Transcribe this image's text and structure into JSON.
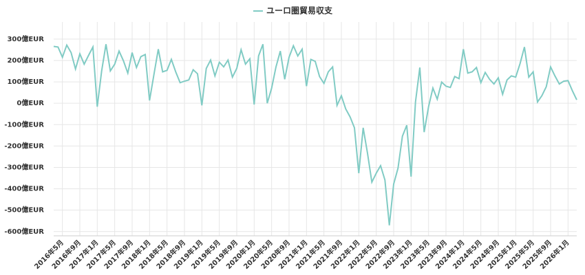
{
  "chart_data": {
    "type": "line",
    "categories": [
      null,
      null,
      "2016年5月",
      null,
      null,
      null,
      "2016年9月",
      null,
      null,
      null,
      "2017年1月",
      null,
      null,
      null,
      "2017年5月",
      null,
      null,
      null,
      "2017年9月",
      null,
      null,
      null,
      "2018年1月",
      null,
      null,
      null,
      "2018年5月",
      null,
      null,
      null,
      "2018年9月",
      null,
      null,
      null,
      "2019年1月",
      null,
      null,
      null,
      "2019年5月",
      null,
      null,
      null,
      "2019年9月",
      null,
      null,
      null,
      "2020年1月",
      null,
      null,
      null,
      "2020年5月",
      null,
      null,
      null,
      "2020年9月",
      null,
      null,
      null,
      "2021年1月",
      null,
      null,
      null,
      "2021年5月",
      null,
      null,
      null,
      "2021年9月",
      null,
      null,
      null,
      "2022年1月",
      null,
      null,
      null,
      "2022年5月",
      null,
      null,
      null,
      "2022年9月",
      null,
      null,
      null,
      "2023年1月",
      null,
      null,
      null,
      "2023年5月",
      null,
      null,
      null,
      "2023年9月",
      null,
      null,
      null,
      "2024年1月",
      null,
      null,
      null,
      "2024年5月",
      null,
      null,
      null,
      "2024年9月",
      null,
      null,
      null,
      "2025年1月",
      null,
      null,
      null,
      "2025年5月",
      null,
      null,
      null,
      "2025年9月",
      null,
      null,
      null,
      "2026年1月",
      null,
      null
    ],
    "series": [
      {
        "name": "ユーロ圏貿易収支",
        "color": "#80cbc4",
        "values": [
          266,
          263,
          215,
          272,
          237,
          160,
          231,
          183,
          224,
          263,
          -16,
          151,
          276,
          151,
          183,
          244,
          199,
          141,
          237,
          167,
          218,
          228,
          13,
          135,
          253,
          147,
          154,
          205,
          147,
          96,
          103,
          109,
          157,
          138,
          -10,
          163,
          202,
          128,
          192,
          170,
          202,
          122,
          163,
          250,
          183,
          208,
          -6,
          221,
          276,
          0,
          71,
          170,
          244,
          112,
          215,
          269,
          221,
          253,
          80,
          205,
          196,
          125,
          93,
          147,
          170,
          -10,
          35,
          -26,
          -64,
          -115,
          -327,
          -115,
          -234,
          -369,
          -327,
          -292,
          -359,
          -571,
          -378,
          -304,
          -154,
          -103,
          -343,
          6,
          167,
          -135,
          -16,
          71,
          19,
          99,
          80,
          74,
          125,
          115,
          253,
          141,
          147,
          167,
          96,
          144,
          112,
          90,
          119,
          42,
          109,
          128,
          122,
          186,
          263,
          122,
          147,
          6,
          35,
          77,
          170,
          128,
          90,
          103,
          106,
          58,
          16
        ]
      }
    ],
    "ylim": [
      -620,
      380
    ],
    "yticks": [
      {
        "value": -600,
        "label": "-600億EUR"
      },
      {
        "value": -500,
        "label": "-500億EUR"
      },
      {
        "value": -400,
        "label": "-400億EUR"
      },
      {
        "value": -300,
        "label": "-300億EUR"
      },
      {
        "value": -200,
        "label": "-200億EUR"
      },
      {
        "value": -100,
        "label": "-100億EUR"
      },
      {
        "value": 0,
        "label": "0億EUR"
      },
      {
        "value": 100,
        "label": "100億EUR"
      },
      {
        "value": 200,
        "label": "200億EUR"
      },
      {
        "value": 300,
        "label": "300億EUR"
      }
    ],
    "grid": true
  }
}
